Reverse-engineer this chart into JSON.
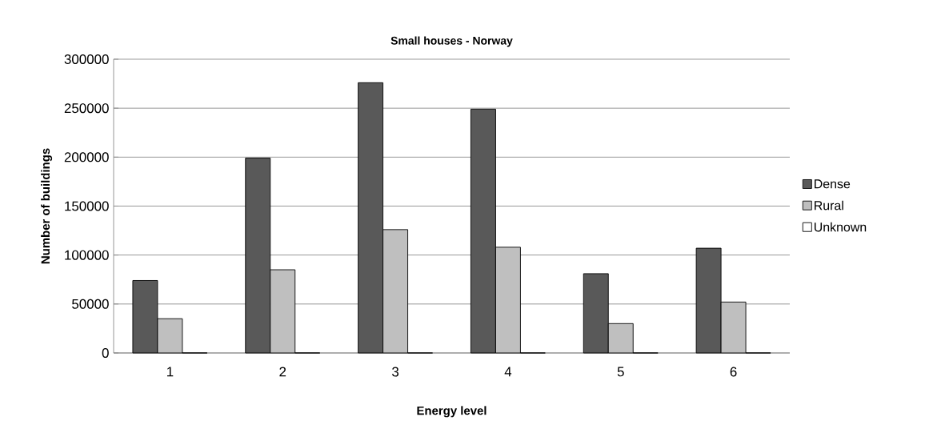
{
  "chart_data": {
    "type": "bar",
    "title": "Small houses - Norway",
    "xlabel": "Energy level",
    "ylabel": "Number of buildings",
    "categories": [
      "1",
      "2",
      "3",
      "4",
      "5",
      "6"
    ],
    "series": [
      {
        "name": "Dense",
        "color": "#595959",
        "values": [
          74000,
          199000,
          276000,
          249000,
          81000,
          107000
        ]
      },
      {
        "name": "Rural",
        "color": "#bfbfbf",
        "values": [
          35000,
          85000,
          126000,
          108000,
          30000,
          52000
        ]
      },
      {
        "name": "Unknown",
        "color": "#ffffff",
        "values": [
          0,
          0,
          0,
          0,
          0,
          0
        ]
      }
    ],
    "ylim": [
      0,
      300000
    ],
    "yticks": [
      0,
      50000,
      100000,
      150000,
      200000,
      250000,
      300000
    ],
    "grid": "y",
    "legend": "right"
  }
}
